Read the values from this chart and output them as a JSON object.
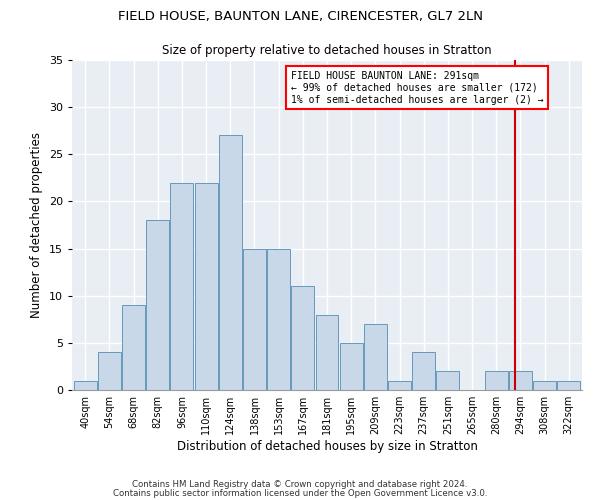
{
  "title1": "FIELD HOUSE, BAUNTON LANE, CIRENCESTER, GL7 2LN",
  "title2": "Size of property relative to detached houses in Stratton",
  "xlabel": "Distribution of detached houses by size in Stratton",
  "ylabel": "Number of detached properties",
  "bar_labels": [
    "40sqm",
    "54sqm",
    "68sqm",
    "82sqm",
    "96sqm",
    "110sqm",
    "124sqm",
    "138sqm",
    "153sqm",
    "167sqm",
    "181sqm",
    "195sqm",
    "209sqm",
    "223sqm",
    "237sqm",
    "251sqm",
    "265sqm",
    "280sqm",
    "294sqm",
    "308sqm",
    "322sqm"
  ],
  "bar_heights": [
    1,
    4,
    9,
    18,
    22,
    22,
    27,
    15,
    15,
    11,
    8,
    5,
    7,
    1,
    4,
    2,
    0,
    2,
    2,
    1,
    1
  ],
  "bar_color": "#c8d8e8",
  "bar_edge_color": "#6699bb",
  "bg_color": "#e8eef4",
  "grid_color": "#ffffff",
  "red_line_x": 17.78,
  "annotation_title": "FIELD HOUSE BAUNTON LANE: 291sqm",
  "annotation_line1": "← 99% of detached houses are smaller (172)",
  "annotation_line2": "1% of semi-detached houses are larger (2) →",
  "ylim": [
    0,
    35
  ],
  "yticks": [
    0,
    5,
    10,
    15,
    20,
    25,
    30,
    35
  ],
  "footer1": "Contains HM Land Registry data © Crown copyright and database right 2024.",
  "footer2": "Contains public sector information licensed under the Open Government Licence v3.0."
}
